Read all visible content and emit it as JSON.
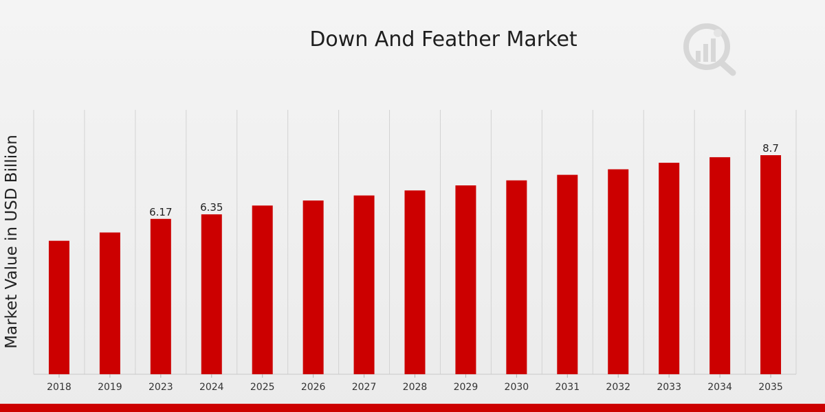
{
  "chart_data": {
    "type": "bar",
    "title": "Down And Feather Market",
    "ylabel": "Market Value in USD Billion",
    "xlabel": "",
    "categories": [
      "2018",
      "2019",
      "2023",
      "2024",
      "2025",
      "2026",
      "2027",
      "2028",
      "2029",
      "2030",
      "2031",
      "2032",
      "2033",
      "2034",
      "2035"
    ],
    "values": [
      5.3,
      5.63,
      6.17,
      6.35,
      6.7,
      6.9,
      7.1,
      7.3,
      7.5,
      7.7,
      7.92,
      8.14,
      8.4,
      8.62,
      8.7
    ],
    "data_labels": {
      "2023": "6.17",
      "2024": "6.35",
      "2035": "8.7"
    },
    "ylim": [
      0,
      10.5
    ],
    "grid": "vertical",
    "bar_color": "#cc0000"
  },
  "colors": {
    "bar": "#cc0000",
    "grid": "#d2d2d2",
    "background": "#efefef",
    "accent_band": "#cc0000"
  },
  "logo": {
    "icon": "bar-chart-magnifier-logo"
  }
}
